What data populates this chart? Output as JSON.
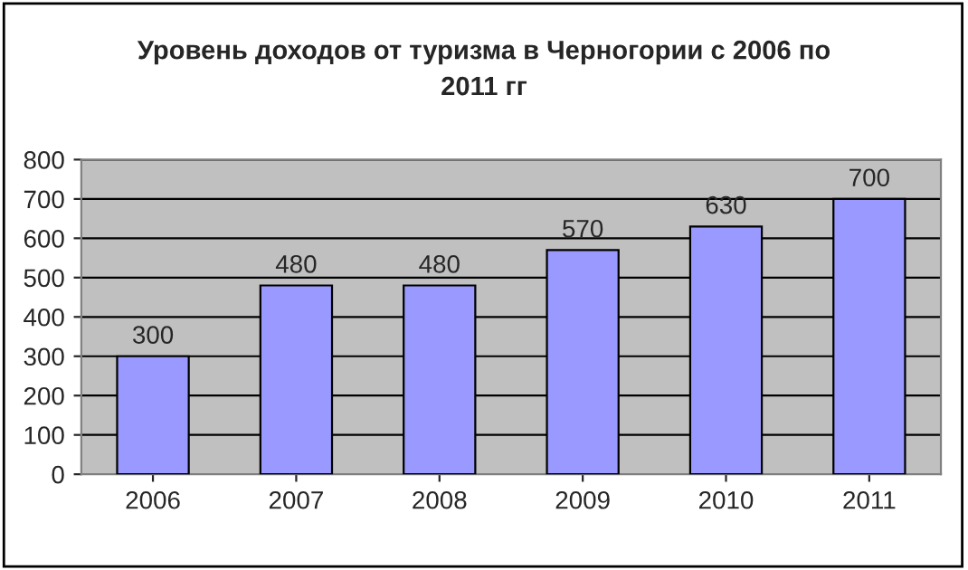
{
  "chart_data": {
    "type": "bar",
    "title": "Уровень доходов от туризма в Черногории с 2006 по\n2011 гг",
    "categories": [
      "2006",
      "2007",
      "2008",
      "2009",
      "2010",
      "2011"
    ],
    "values": [
      300,
      480,
      480,
      570,
      630,
      700
    ],
    "color": "#9999ff",
    "ylim": [
      0,
      800
    ],
    "yticks": [
      0,
      100,
      200,
      300,
      400,
      500,
      600,
      700,
      800
    ],
    "grid": "y",
    "data_labels": true
  }
}
